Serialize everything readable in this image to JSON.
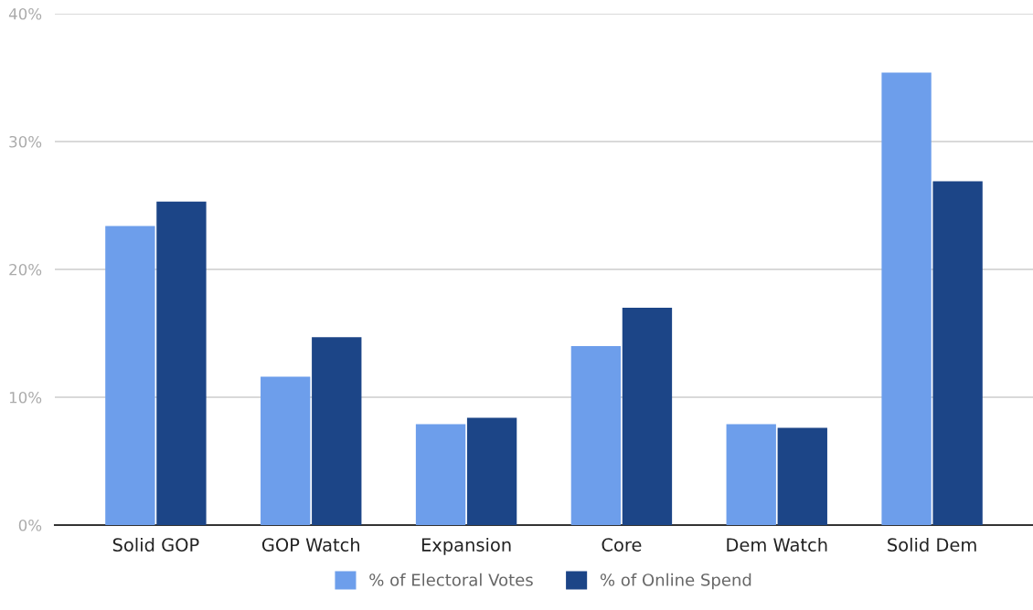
{
  "chart_data": {
    "type": "bar",
    "categories": [
      "Solid GOP",
      "GOP Watch",
      "Expansion",
      "Core",
      "Dem Watch",
      "Solid Dem"
    ],
    "series": [
      {
        "name": "% of Electoral Votes",
        "color": "#6d9eeb",
        "values": [
          23.4,
          11.6,
          7.9,
          14.0,
          7.9,
          35.4
        ]
      },
      {
        "name": "% of Online Spend",
        "color": "#1c4587",
        "values": [
          25.3,
          14.7,
          8.4,
          17.0,
          7.6,
          26.9
        ]
      }
    ],
    "ylim": [
      0,
      40
    ],
    "yticks": [
      {
        "value": 0,
        "label": "0%"
      },
      {
        "value": 10,
        "label": "10%"
      },
      {
        "value": 20,
        "label": "20%"
      },
      {
        "value": 30,
        "label": "30%"
      },
      {
        "value": 40,
        "label": "40%"
      }
    ],
    "grid": "y",
    "legend": "bottom"
  }
}
